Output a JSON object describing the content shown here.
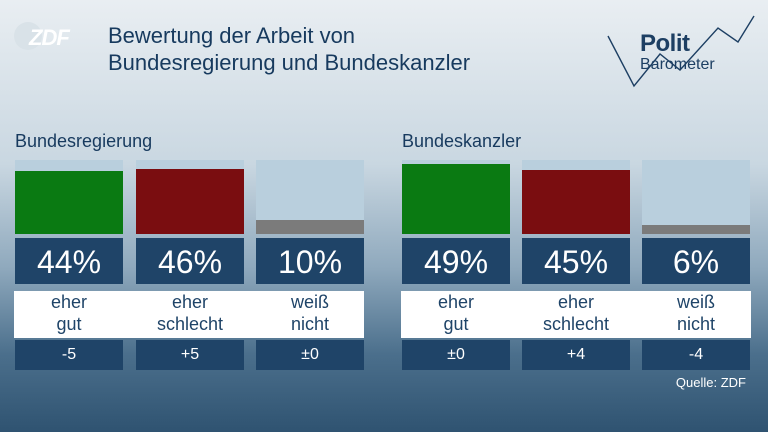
{
  "logo": {
    "text": "ZDF"
  },
  "title": {
    "line1": "Bewertung der Arbeit von",
    "line2": "Bundesregierung und Bundeskanzler"
  },
  "politbarometer": {
    "word1": "Polit",
    "word2": "Barometer"
  },
  "chart_data": [
    {
      "type": "bar",
      "title": "Bundesregierung",
      "categories": [
        "eher gut",
        "eher schlecht",
        "weiß nicht"
      ],
      "values": [
        44,
        46,
        10
      ],
      "value_labels": [
        "44%",
        "46%",
        "10%"
      ],
      "changes": [
        "-5",
        "+5",
        "±0"
      ],
      "colors": [
        "#0a7a12",
        "#7a0d10",
        "#7b7b7b"
      ],
      "ylim": [
        0,
        100
      ]
    },
    {
      "type": "bar",
      "title": "Bundeskanzler",
      "categories": [
        "eher gut",
        "eher schlecht",
        "weiß nicht"
      ],
      "values": [
        49,
        45,
        6
      ],
      "value_labels": [
        "49%",
        "45%",
        "6%"
      ],
      "changes": [
        "±0",
        "+4",
        "-4"
      ],
      "colors": [
        "#0a7a12",
        "#7a0d10",
        "#7b7b7b"
      ],
      "ylim": [
        0,
        100
      ]
    }
  ],
  "labels": {
    "gut": [
      "eher",
      "gut"
    ],
    "schlecht": [
      "eher",
      "schlecht"
    ],
    "weiss": [
      "weiß",
      "nicht"
    ]
  },
  "source": "Quelle: ZDF"
}
